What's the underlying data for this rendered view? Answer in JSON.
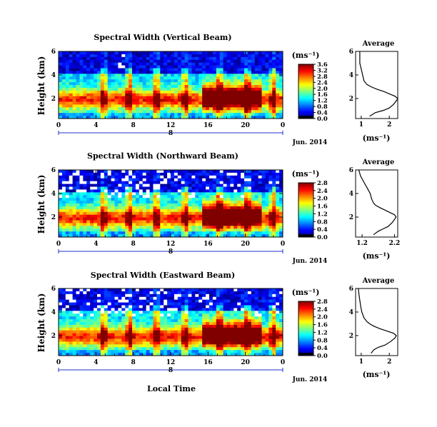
{
  "figure": {
    "xlabel": "Local Time",
    "ylabel": "Height (km)",
    "date_label": "Jun. 2014",
    "day_label": "8",
    "colorbar_unit": "(ms⁻¹)",
    "avg_title": "Average",
    "avg_xlabel": "(ms⁻¹)"
  },
  "chart_data": [
    {
      "type": "heatmap",
      "title": "Spectral Width (Vertical Beam)",
      "xlabel": "",
      "ylabel": "Height (km)",
      "xlim": [
        0,
        24
      ],
      "ylim": [
        0.3,
        6
      ],
      "xticks": [
        "0",
        "4",
        "8",
        "12",
        "16",
        "20",
        "0"
      ],
      "yticks": [
        "2",
        "4",
        "6"
      ],
      "colorbar": {
        "label": "(ms⁻¹)",
        "range": [
          0.0,
          3.6
        ],
        "ticks": [
          "3.6",
          "3.2",
          "2.8",
          "2.4",
          "2.0",
          "1.6",
          "1.2",
          "0.8",
          "0.4",
          "0.0"
        ]
      },
      "profile": {
        "type": "line",
        "title": "Average",
        "xlabel": "(ms⁻¹)",
        "xticks": [
          "1",
          "2"
        ],
        "yticks": [
          "2",
          "4",
          "6"
        ],
        "xlim": [
          0.8,
          2.3
        ],
        "ylim": [
          0.3,
          6
        ],
        "heights": [
          0.5,
          0.8,
          1.0,
          1.2,
          1.5,
          1.8,
          2.0,
          2.2,
          2.4,
          2.6,
          2.8,
          3.0,
          3.2,
          3.5,
          4.0,
          4.5,
          5.0,
          5.5,
          6.0
        ],
        "values": [
          1.3,
          1.5,
          1.8,
          2.0,
          2.15,
          2.25,
          2.3,
          2.2,
          2.0,
          1.8,
          1.55,
          1.35,
          1.2,
          1.1,
          1.05,
          1.0,
          0.95,
          0.95,
          0.95
        ]
      }
    },
    {
      "type": "heatmap",
      "title": "Spectral Width (Northward Beam)",
      "xlabel": "",
      "ylabel": "Height (km)",
      "xlim": [
        0,
        24
      ],
      "ylim": [
        0.3,
        6
      ],
      "xticks": [
        "0",
        "4",
        "8",
        "12",
        "16",
        "20",
        "0"
      ],
      "yticks": [
        "2",
        "4",
        "6"
      ],
      "colorbar": {
        "label": "(ms⁻¹)",
        "range": [
          0.0,
          2.8
        ],
        "ticks": [
          "2.8",
          "2.4",
          "2.0",
          "1.6",
          "1.2",
          "0.8",
          "0.4",
          "0.0"
        ]
      },
      "profile": {
        "type": "line",
        "title": "Average",
        "xlabel": "(ms⁻¹)",
        "xticks": [
          "1.2",
          "2.2"
        ],
        "yticks": [
          "2",
          "4",
          "6"
        ],
        "xlim": [
          1.0,
          2.3
        ],
        "ylim": [
          0.3,
          6
        ],
        "heights": [
          0.5,
          0.8,
          1.0,
          1.2,
          1.5,
          1.8,
          2.0,
          2.2,
          2.4,
          2.6,
          2.8,
          3.0,
          3.2,
          3.5,
          4.0,
          4.5,
          5.0,
          5.5,
          6.0
        ],
        "values": [
          1.55,
          1.7,
          1.85,
          2.0,
          2.12,
          2.2,
          2.25,
          2.2,
          2.05,
          1.9,
          1.75,
          1.62,
          1.55,
          1.5,
          1.45,
          1.35,
          1.25,
          1.15,
          1.1
        ]
      }
    },
    {
      "type": "heatmap",
      "title": "Spectral Width (Eastward Beam)",
      "xlabel": "Local Time",
      "ylabel": "Height (km)",
      "xlim": [
        0,
        24
      ],
      "ylim": [
        0.3,
        6
      ],
      "xticks": [
        "0",
        "4",
        "8",
        "12",
        "16",
        "20",
        "0"
      ],
      "yticks": [
        "2",
        "4",
        "6"
      ],
      "colorbar": {
        "label": "(ms⁻¹)",
        "range": [
          0.0,
          2.8
        ],
        "ticks": [
          "2.8",
          "2.4",
          "2.0",
          "1.6",
          "1.2",
          "0.8",
          "0.4",
          "0.0"
        ]
      },
      "profile": {
        "type": "line",
        "title": "Average",
        "xlabel": "(ms⁻¹)",
        "xticks": [
          "1",
          "2"
        ],
        "yticks": [
          "2",
          "4",
          "6"
        ],
        "xlim": [
          0.8,
          2.3
        ],
        "ylim": [
          0.3,
          6
        ],
        "heights": [
          0.5,
          0.8,
          1.0,
          1.2,
          1.5,
          1.8,
          2.0,
          2.2,
          2.4,
          2.6,
          2.8,
          3.0,
          3.2,
          3.5,
          4.0,
          4.5,
          5.0,
          5.5,
          6.0
        ],
        "values": [
          1.35,
          1.45,
          1.6,
          1.85,
          2.05,
          2.2,
          2.25,
          2.15,
          1.9,
          1.65,
          1.45,
          1.3,
          1.2,
          1.1,
          1.02,
          0.98,
          0.95,
          0.92,
          0.9
        ]
      }
    }
  ]
}
